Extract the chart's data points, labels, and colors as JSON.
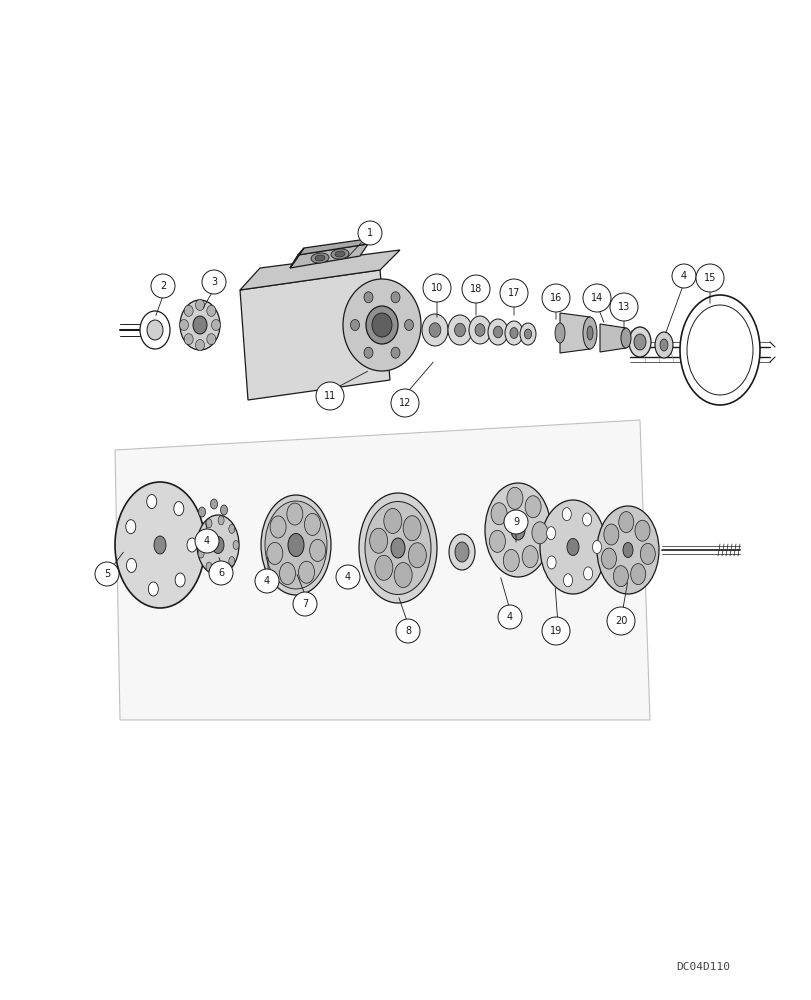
{
  "background_color": "#ffffff",
  "figure_width": 8.12,
  "figure_height": 10.0,
  "dpi": 100,
  "watermark": "DC04D110",
  "black": "#1a1a1a",
  "gray_light": "#e0e0e0",
  "gray_mid": "#b0b0b0",
  "gray_dark": "#888888"
}
